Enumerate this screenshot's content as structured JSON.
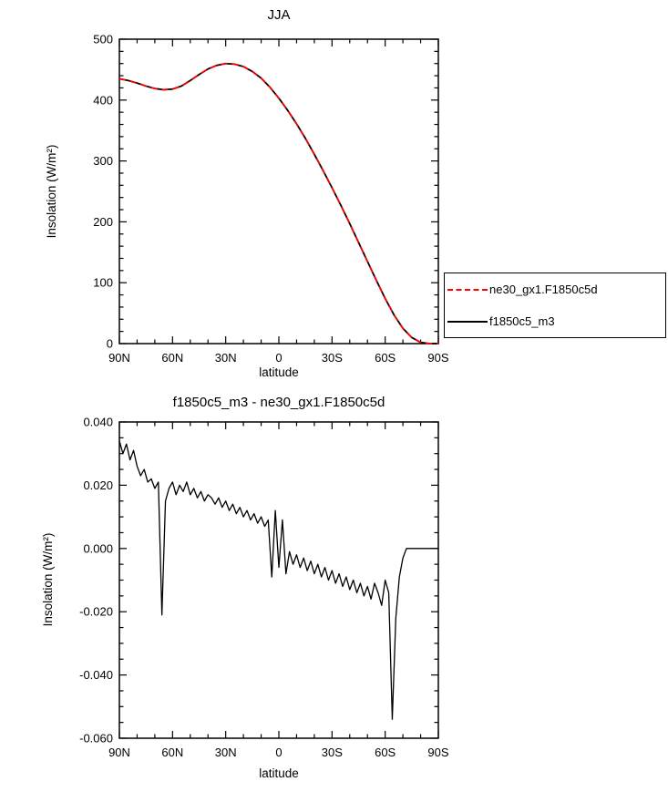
{
  "page": {
    "background": "#ffffff"
  },
  "colors": {
    "series_red": "#ff0000",
    "series_black": "#000000",
    "axis": "#000000"
  },
  "chart_data": [
    {
      "type": "line",
      "title": "JJA",
      "xlabel": "latitude",
      "ylabel": "Insolation (W/m²)",
      "x_axis": {
        "range": [
          90,
          -90
        ],
        "minor_step": 10,
        "ticks": [
          {
            "v": 90,
            "label": "90N"
          },
          {
            "v": 60,
            "label": "60N"
          },
          {
            "v": 30,
            "label": "30N"
          },
          {
            "v": 0,
            "label": "0"
          },
          {
            "v": -30,
            "label": "30S"
          },
          {
            "v": -60,
            "label": "60S"
          },
          {
            "v": -90,
            "label": "90S"
          }
        ]
      },
      "y_axis": {
        "range": [
          0,
          500
        ],
        "minor_step": 20,
        "ticks": [
          {
            "v": 0,
            "label": "0"
          },
          {
            "v": 100,
            "label": "100"
          },
          {
            "v": 200,
            "label": "200"
          },
          {
            "v": 300,
            "label": "300"
          },
          {
            "v": 400,
            "label": "400"
          },
          {
            "v": 500,
            "label": "500"
          }
        ]
      },
      "x": [
        90,
        85,
        80,
        75,
        70,
        65,
        60,
        55,
        50,
        45,
        40,
        35,
        30,
        25,
        20,
        15,
        10,
        5,
        0,
        -5,
        -10,
        -15,
        -20,
        -25,
        -30,
        -35,
        -40,
        -45,
        -50,
        -55,
        -60,
        -65,
        -70,
        -75,
        -80,
        -85,
        -90
      ],
      "series": [
        {
          "name": "ne30_gx1.F1850c5d",
          "color": "#ff0000",
          "style": "dashed",
          "values": [
            435,
            432,
            428,
            423,
            419,
            417,
            418,
            423,
            432,
            442,
            451,
            457,
            460,
            459,
            455,
            447,
            436,
            421,
            403,
            383,
            361,
            337,
            311,
            284,
            256,
            227,
            197,
            166,
            135,
            104,
            74,
            47,
            25,
            10,
            2,
            0,
            0
          ]
        },
        {
          "name": "f1850c5_m3",
          "color": "#000000",
          "style": "solid",
          "values": [
            435,
            432,
            428,
            423,
            419,
            417,
            418,
            423,
            432,
            442,
            451,
            457,
            460,
            459,
            455,
            447,
            436,
            421,
            403,
            383,
            361,
            337,
            311,
            284,
            256,
            227,
            197,
            166,
            135,
            104,
            74,
            47,
            25,
            10,
            2,
            0,
            0
          ]
        }
      ],
      "legend": {
        "position": "outside-right-bottom",
        "entries": [
          "ne30_gx1.F1850c5d",
          "f1850c5_m3"
        ]
      }
    },
    {
      "type": "line",
      "title": "f1850c5_m3 - ne30_gx1.F1850c5d",
      "xlabel": "latitude",
      "ylabel": "Insolation (W/m²)",
      "x_axis": {
        "range": [
          90,
          -90
        ],
        "minor_step": 10,
        "ticks": [
          {
            "v": 90,
            "label": "90N"
          },
          {
            "v": 60,
            "label": "60N"
          },
          {
            "v": 30,
            "label": "30N"
          },
          {
            "v": 0,
            "label": "0"
          },
          {
            "v": -30,
            "label": "30S"
          },
          {
            "v": -60,
            "label": "60S"
          },
          {
            "v": -90,
            "label": "90S"
          }
        ]
      },
      "y_axis": {
        "range": [
          -0.06,
          0.04
        ],
        "minor_step": 0.005,
        "ticks": [
          {
            "v": -0.06,
            "label": "-0.060"
          },
          {
            "v": -0.04,
            "label": "-0.040"
          },
          {
            "v": -0.02,
            "label": "-0.020"
          },
          {
            "v": 0,
            "label": "0.000"
          },
          {
            "v": 0.02,
            "label": "0.020"
          },
          {
            "v": 0.04,
            "label": "0.040"
          }
        ]
      },
      "x": [
        90,
        88,
        86,
        84,
        82,
        80,
        78,
        76,
        74,
        72,
        70,
        68,
        66,
        64,
        62,
        60,
        58,
        56,
        54,
        52,
        50,
        48,
        46,
        44,
        42,
        40,
        38,
        36,
        34,
        32,
        30,
        28,
        26,
        24,
        22,
        20,
        18,
        16,
        14,
        12,
        10,
        8,
        6,
        4,
        2,
        0,
        -2,
        -4,
        -6,
        -8,
        -10,
        -12,
        -14,
        -16,
        -18,
        -20,
        -22,
        -24,
        -26,
        -28,
        -30,
        -32,
        -34,
        -36,
        -38,
        -40,
        -42,
        -44,
        -46,
        -48,
        -50,
        -52,
        -54,
        -56,
        -58,
        -60,
        -62,
        -64,
        -66,
        -68,
        -70,
        -72,
        -74,
        -76,
        -78,
        -80,
        -82,
        -84,
        -86,
        -88,
        -90
      ],
      "series": [
        {
          "name": "f1850c5_m3 - ne30_gx1.F1850c5d",
          "color": "#000000",
          "style": "solid",
          "values": [
            0.034,
            0.03,
            0.033,
            0.028,
            0.031,
            0.026,
            0.023,
            0.025,
            0.021,
            0.022,
            0.019,
            0.021,
            -0.021,
            0.015,
            0.019,
            0.021,
            0.017,
            0.02,
            0.018,
            0.021,
            0.017,
            0.019,
            0.016,
            0.018,
            0.015,
            0.017,
            0.016,
            0.014,
            0.016,
            0.013,
            0.015,
            0.012,
            0.014,
            0.011,
            0.013,
            0.01,
            0.012,
            0.009,
            0.011,
            0.008,
            0.01,
            0.007,
            0.009,
            -0.009,
            0.012,
            -0.006,
            0.009,
            -0.008,
            -0.001,
            -0.005,
            -0.002,
            -0.006,
            -0.003,
            -0.007,
            -0.004,
            -0.008,
            -0.005,
            -0.009,
            -0.006,
            -0.01,
            -0.007,
            -0.011,
            -0.008,
            -0.012,
            -0.009,
            -0.013,
            -0.01,
            -0.014,
            -0.011,
            -0.015,
            -0.012,
            -0.016,
            -0.011,
            -0.014,
            -0.018,
            -0.01,
            -0.014,
            -0.054,
            -0.022,
            -0.009,
            -0.003,
            0.0,
            0.0,
            0.0,
            0.0,
            0.0,
            0.0,
            0.0,
            0.0,
            0.0,
            0.0
          ]
        }
      ],
      "legend": null
    }
  ]
}
